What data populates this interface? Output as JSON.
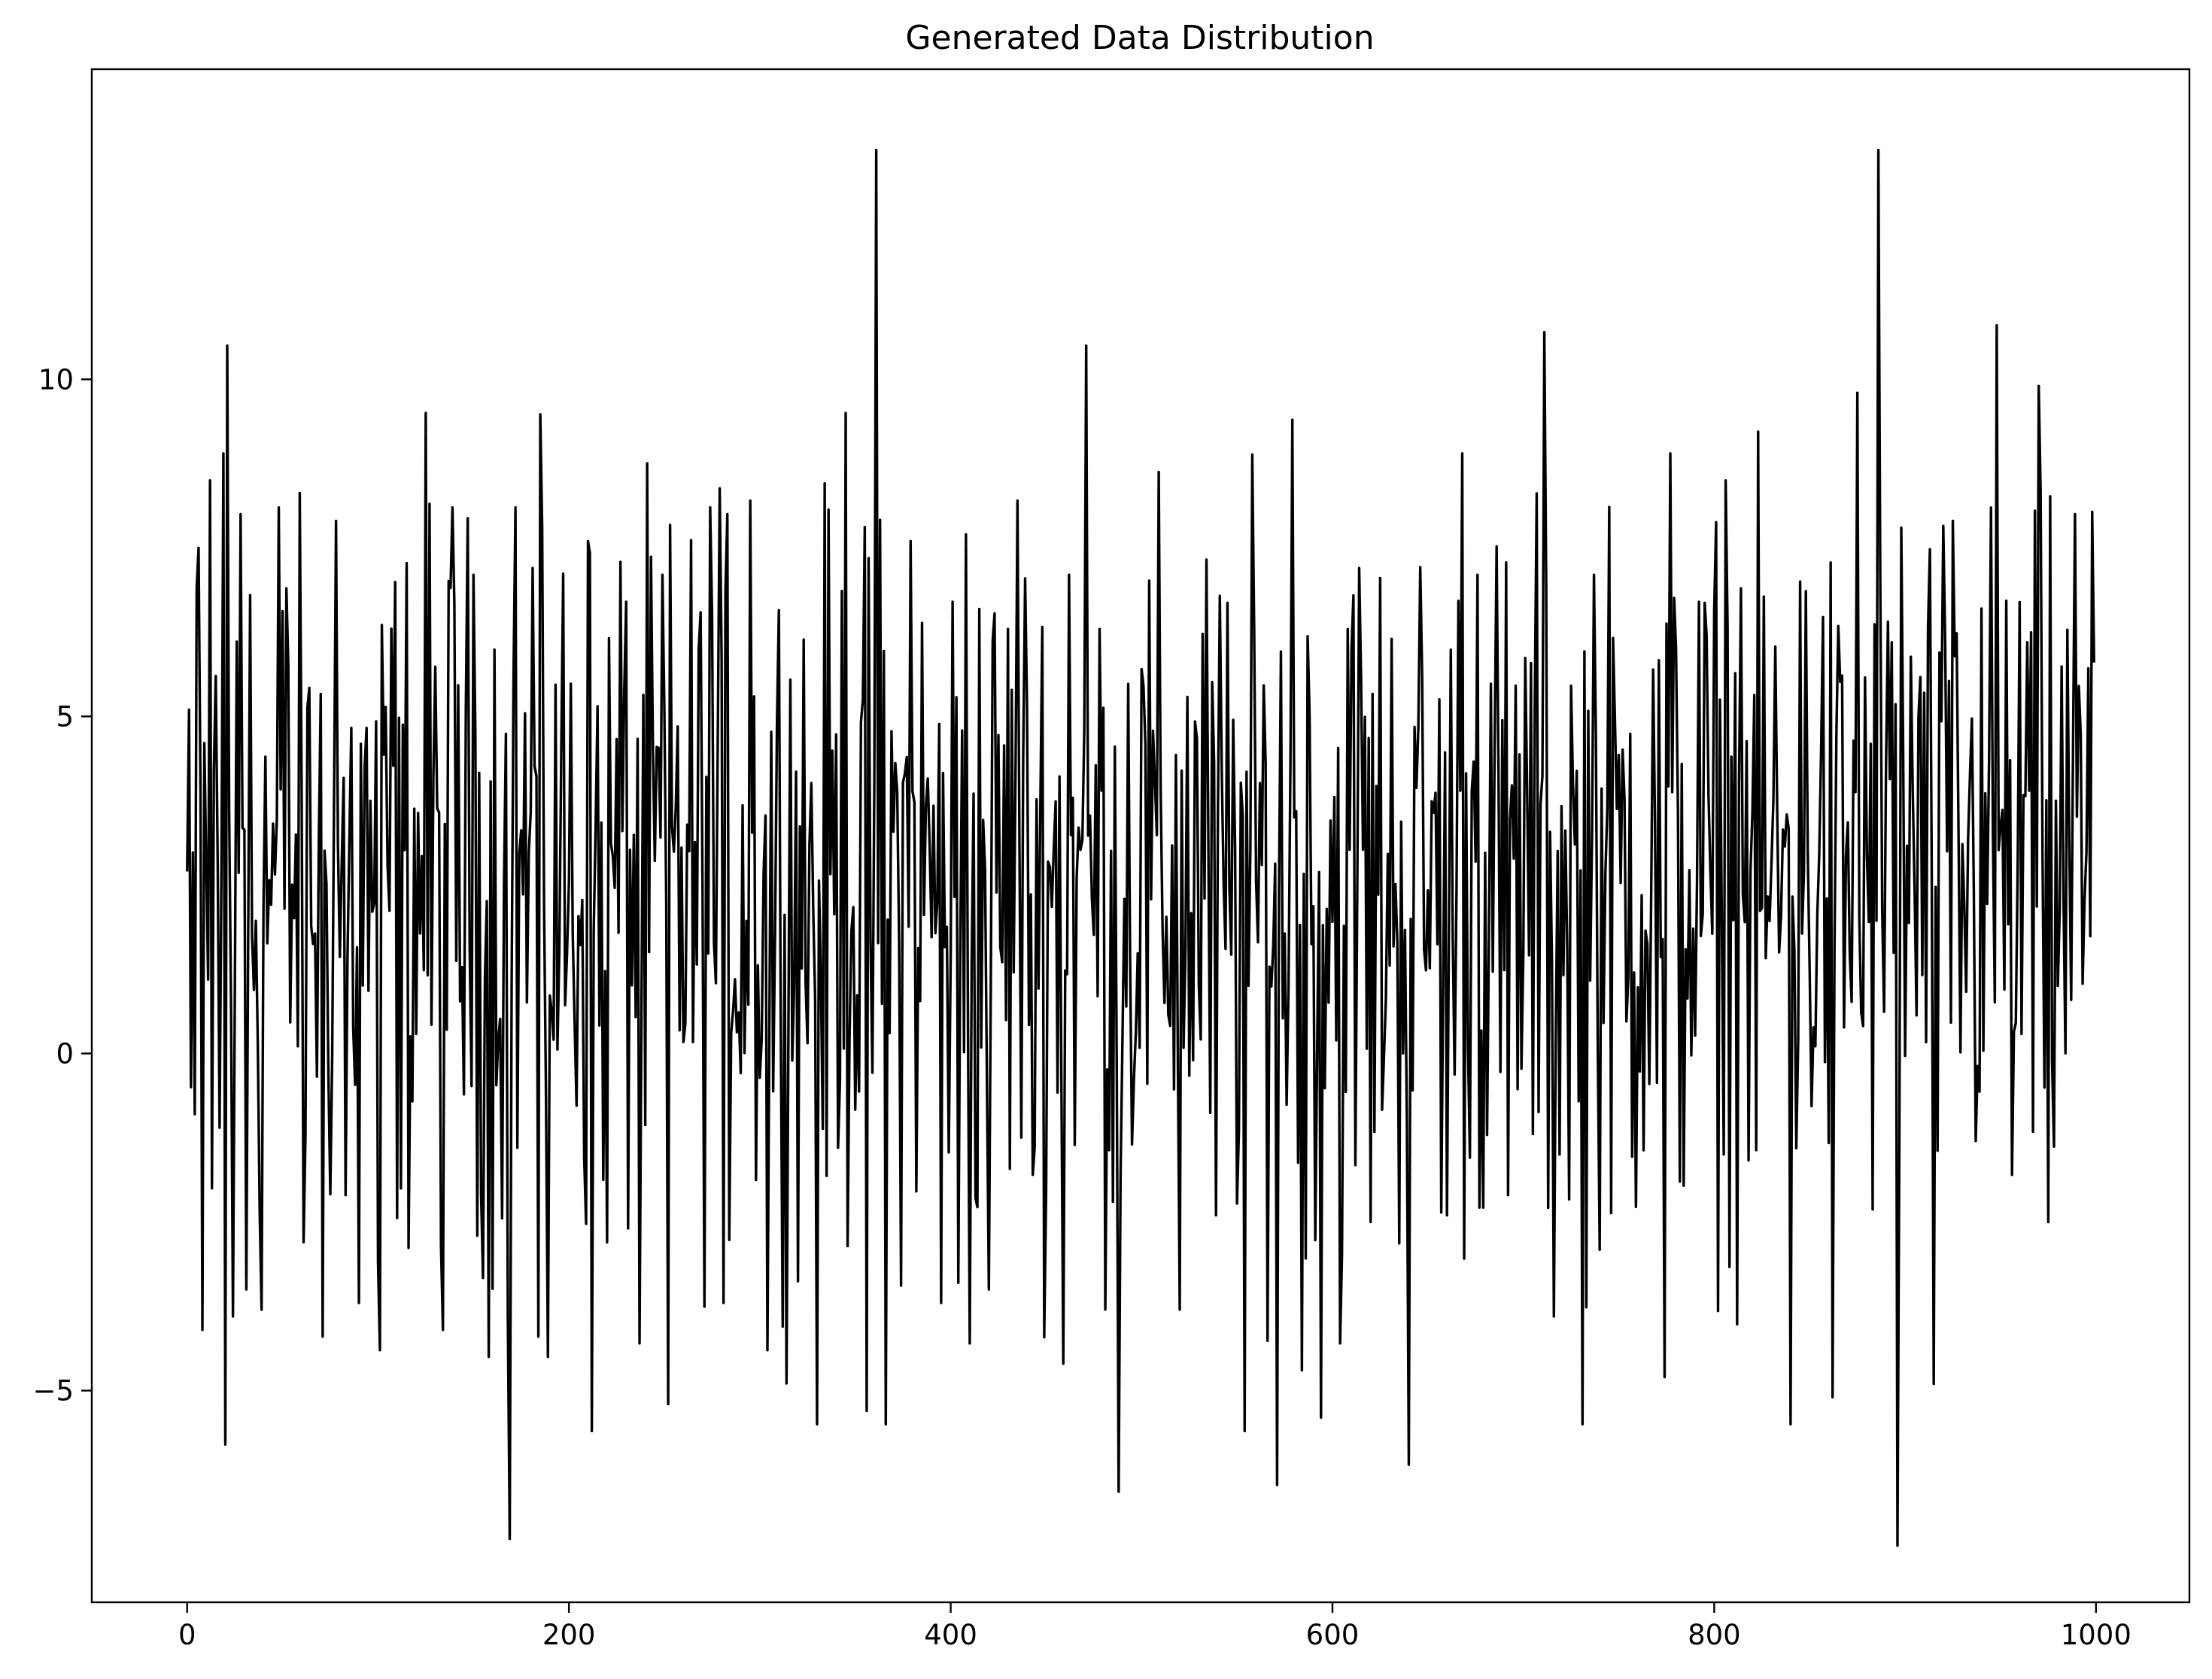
{
  "chart_data": {
    "type": "line",
    "title": "Generated Data Distribution",
    "xlabel": "",
    "ylabel": "",
    "xlim": [
      -49.95,
      1048.95
    ],
    "ylim": [
      -8.14,
      14.6
    ],
    "xticks": [
      0,
      200,
      400,
      600,
      800,
      1000
    ],
    "xtick_labels": [
      "0",
      "200",
      "400",
      "600",
      "800",
      "1000"
    ],
    "yticks": [
      -5,
      0,
      5,
      10
    ],
    "ytick_labels": [
      "−5",
      "0",
      "5",
      "10"
    ],
    "grid": false,
    "legend": "none",
    "line_color": "#000000",
    "n_points": 1000,
    "series": [
      {
        "x_start": 0,
        "x_step": 1,
        "keypoints": [
          [
            0,
            2.7
          ],
          [
            1,
            5.1
          ],
          [
            2,
            -0.5
          ],
          [
            4,
            -0.9
          ],
          [
            6,
            7.5
          ],
          [
            8,
            -4.1
          ],
          [
            12,
            8.5
          ],
          [
            13,
            -2.0
          ],
          [
            15,
            5.6
          ],
          [
            17,
            -1.1
          ],
          [
            19,
            8.9
          ],
          [
            20,
            -5.8
          ],
          [
            21,
            10.5
          ],
          [
            24,
            -3.9
          ],
          [
            28,
            8.0
          ],
          [
            31,
            -3.5
          ],
          [
            33,
            6.8
          ],
          [
            39,
            -3.8
          ],
          [
            48,
            8.1
          ],
          [
            52,
            6.9
          ],
          [
            61,
            -2.8
          ],
          [
            71,
            -4.2
          ],
          [
            78,
            7.9
          ],
          [
            83,
            -2.1
          ],
          [
            90,
            -3.7
          ],
          [
            100,
            -3.1
          ],
          [
            101,
            -4.4
          ],
          [
            107,
            6.3
          ],
          [
            112,
            -2.0
          ],
          [
            125,
            9.5
          ],
          [
            134,
            -4.1
          ],
          [
            139,
            8.1
          ],
          [
            150,
            7.1
          ],
          [
            158,
            -4.5
          ],
          [
            168,
            -3.9
          ],
          [
            169,
            -7.2
          ],
          [
            172,
            8.1
          ],
          [
            181,
            7.2
          ],
          [
            184,
            -4.2
          ],
          [
            186,
            7.8
          ],
          [
            189,
            -4.5
          ],
          [
            210,
            7.6
          ],
          [
            212,
            -5.6
          ],
          [
            220,
            -2.8
          ],
          [
            230,
            6.7
          ],
          [
            237,
            -4.3
          ],
          [
            249,
            7.1
          ],
          [
            252,
            -5.2
          ],
          [
            274,
            8.1
          ],
          [
            281,
            -3.7
          ],
          [
            283,
            8.0
          ],
          [
            295,
            8.2
          ],
          [
            304,
            -4.4
          ],
          [
            330,
            -5.5
          ],
          [
            345,
            9.5
          ],
          [
            356,
            -5.3
          ],
          [
            361,
            13.4
          ],
          [
            366,
            -5.5
          ],
          [
            379,
            7.6
          ],
          [
            395,
            -3.7
          ],
          [
            404,
            -3.4
          ],
          [
            408,
            7.7
          ],
          [
            410,
            -4.3
          ],
          [
            420,
            -3.5
          ],
          [
            435,
            8.2
          ],
          [
            443,
            -1.8
          ],
          [
            459,
            -4.6
          ],
          [
            462,
            7.1
          ],
          [
            471,
            10.5
          ],
          [
            479,
            3.9
          ],
          [
            485,
            -2.2
          ],
          [
            488,
            -6.5
          ],
          [
            500,
            5.7
          ],
          [
            520,
            -3.8
          ],
          [
            539,
            -2.4
          ],
          [
            554,
            -5.6
          ],
          [
            571,
            -6.4
          ],
          [
            579,
            9.4
          ],
          [
            584,
            -4.7
          ],
          [
            594,
            -5.4
          ],
          [
            604,
            -4.3
          ],
          [
            614,
            7.2
          ],
          [
            620,
            -2.5
          ],
          [
            640,
            -6.1
          ],
          [
            660,
            -2.4
          ],
          [
            668,
            8.9
          ],
          [
            676,
            7.1
          ],
          [
            692,
            -2.1
          ],
          [
            711,
            10.7
          ],
          [
            716,
            -3.9
          ],
          [
            731,
            -5.5
          ],
          [
            737,
            7.1
          ],
          [
            774,
            -4.8
          ],
          [
            777,
            8.9
          ],
          [
            806,
            8.5
          ],
          [
            814,
            6.9
          ],
          [
            840,
            -5.5
          ],
          [
            845,
            7.0
          ],
          [
            862,
            -5.1
          ],
          [
            875,
            9.8
          ],
          [
            886,
            13.4
          ],
          [
            893,
            6.1
          ],
          [
            896,
            -7.3
          ],
          [
            898,
            7.8
          ],
          [
            907,
            5.0
          ],
          [
            915,
            -4.9
          ],
          [
            925,
            7.9
          ],
          [
            940,
            6.6
          ],
          [
            948,
            10.8
          ],
          [
            956,
            -1.8
          ],
          [
            964,
            6.1
          ],
          [
            970,
            9.9
          ],
          [
            975,
            -2.5
          ],
          [
            989,
            8.0
          ],
          [
            999,
            5.8
          ]
        ]
      }
    ]
  }
}
